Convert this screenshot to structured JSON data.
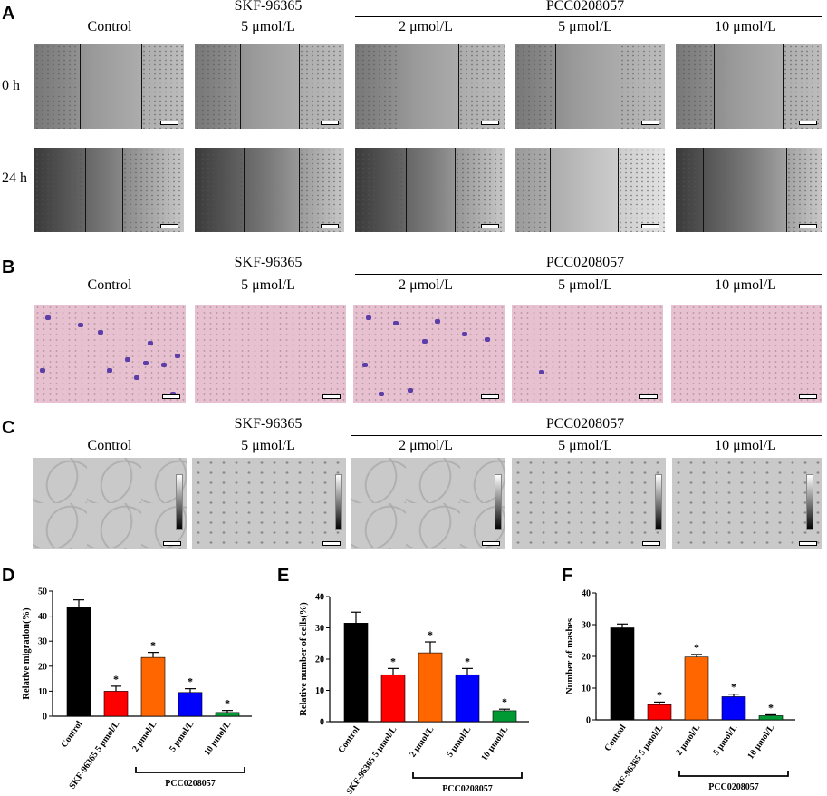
{
  "panels": {
    "A": "A",
    "B": "B",
    "C": "C",
    "D": "D",
    "E": "E",
    "F": "F"
  },
  "headers": {
    "skf": "SKF-96365",
    "pcc": "PCC0208057",
    "columns": [
      "Control",
      "5 μmol/L",
      "2 μmol/L",
      "5 μmol/L",
      "10 μmol/L"
    ]
  },
  "rows_A": [
    "0 h",
    "24 h"
  ],
  "chart_data": [
    {
      "type": "bar",
      "panel": "D",
      "categories": [
        "Control",
        "SKF-96365 5 μmol/L",
        "2 μmol/L",
        "5 μmol/L",
        "10 μmol/L"
      ],
      "values": [
        43.5,
        10,
        23.5,
        9.5,
        1.5
      ],
      "errors": [
        3,
        2,
        2,
        1.5,
        0.8
      ],
      "significance": [
        "",
        "*",
        "*",
        "*",
        "*"
      ],
      "colors": [
        "#000000",
        "#ff0000",
        "#ff6600",
        "#0000ff",
        "#009933"
      ],
      "ylabel": "Relative migration(%)",
      "ylim": [
        0,
        50
      ],
      "yticks": [
        0,
        10,
        20,
        30,
        40,
        50
      ],
      "group_label": "PCC0208057"
    },
    {
      "type": "bar",
      "panel": "E",
      "categories": [
        "Control",
        "SKF-96365 5 μmol/L",
        "2 μmol/L",
        "5 μmol/L",
        "10 μmol/L"
      ],
      "values": [
        31.5,
        15,
        22,
        15,
        3.5
      ],
      "errors": [
        3.5,
        2,
        3.5,
        2,
        0.5
      ],
      "significance": [
        "",
        "*",
        "*",
        "*",
        "*"
      ],
      "colors": [
        "#000000",
        "#ff0000",
        "#ff6600",
        "#0000ff",
        "#009933"
      ],
      "ylabel": "Relative number of cells(%)",
      "ylim": [
        0,
        40
      ],
      "yticks": [
        0,
        10,
        20,
        30,
        40
      ],
      "group_label": "PCC0208057"
    },
    {
      "type": "bar",
      "panel": "F",
      "categories": [
        "Control",
        "SKF-96365 5 μmol/L",
        "2 μmol/L",
        "5 μmol/L",
        "10 μmol/L"
      ],
      "values": [
        29,
        4.8,
        19.8,
        7.3,
        1.3
      ],
      "errors": [
        1.2,
        0.8,
        0.8,
        0.8,
        0.3
      ],
      "significance": [
        "",
        "*",
        "*",
        "*",
        "*"
      ],
      "colors": [
        "#000000",
        "#ff0000",
        "#ff6600",
        "#0000ff",
        "#009933"
      ],
      "ylabel": "Number of mashes",
      "ylim": [
        0,
        40
      ],
      "yticks": [
        0,
        10,
        20,
        30,
        40
      ],
      "group_label": "PCC0208057"
    }
  ]
}
